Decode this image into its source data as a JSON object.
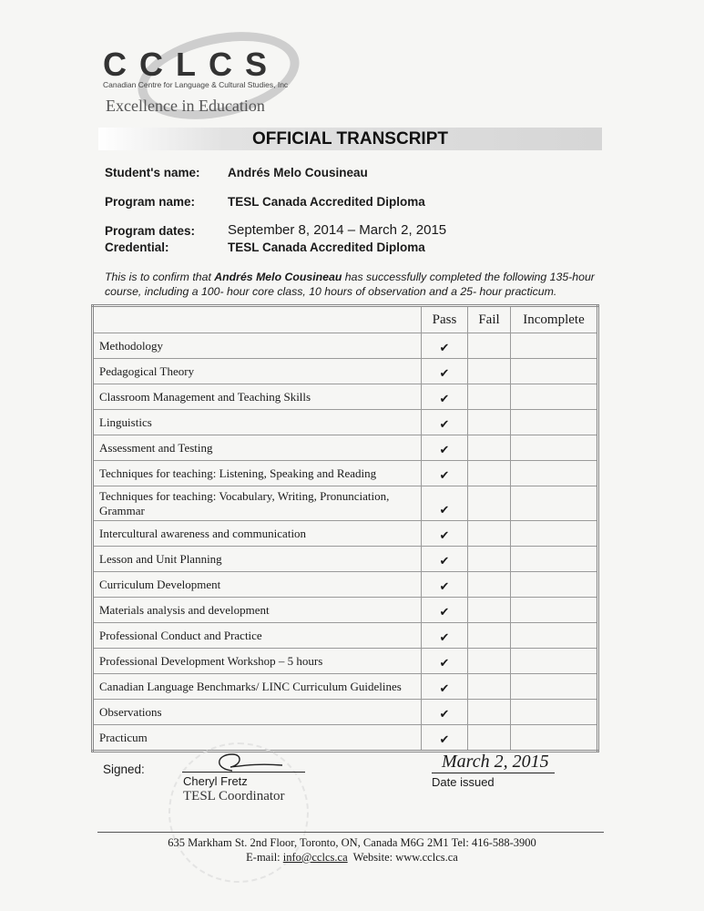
{
  "header": {
    "logo_text": "CCLCS",
    "logo_subtitle": "Canadian Centre for Language & Cultural Studies, Inc",
    "tagline": "Excellence in Education",
    "title": "OFFICIAL TRANSCRIPT"
  },
  "student": {
    "name_label": "Student's name:",
    "name": "Andrés Melo Cousineau",
    "program_label": "Program name:",
    "program": "TESL Canada Accredited Diploma",
    "dates_label": "Program dates:",
    "dates": "September 8, 2014 – March 2, 2015",
    "credential_label": "Credential:",
    "credential": "TESL Canada Accredited Diploma"
  },
  "intro": {
    "before": "This is to confirm that ",
    "name": "Andrés Melo Cousineau",
    "after": " has successfully completed the following 135-hour course, including a 100- hour core class, 10 hours of observation and a 25- hour  practicum."
  },
  "table": {
    "headers": [
      "",
      "Pass",
      "Fail",
      "Incomplete"
    ],
    "rows": [
      {
        "course": "Methodology",
        "pass": "✔",
        "fail": "",
        "incomplete": ""
      },
      {
        "course": "Pedagogical Theory",
        "pass": "✔",
        "fail": "",
        "incomplete": ""
      },
      {
        "course": "Classroom Management and Teaching Skills",
        "pass": "✔",
        "fail": "",
        "incomplete": ""
      },
      {
        "course": "Linguistics",
        "pass": "✔",
        "fail": "",
        "incomplete": ""
      },
      {
        "course": "Assessment and Testing",
        "pass": "✔",
        "fail": "",
        "incomplete": ""
      },
      {
        "course": "Techniques for teaching: Listening, Speaking and Reading",
        "pass": "✔",
        "fail": "",
        "incomplete": ""
      },
      {
        "course": "Techniques for teaching: Vocabulary, Writing, Pronunciation, Grammar",
        "pass": "✔",
        "fail": "",
        "incomplete": ""
      },
      {
        "course": "Intercultural awareness and communication",
        "pass": "✔",
        "fail": "",
        "incomplete": ""
      },
      {
        "course": "Lesson and Unit Planning",
        "pass": "✔",
        "fail": "",
        "incomplete": ""
      },
      {
        "course": "Curriculum Development",
        "pass": "✔",
        "fail": "",
        "incomplete": ""
      },
      {
        "course": "Materials analysis and development",
        "pass": "✔",
        "fail": "",
        "incomplete": ""
      },
      {
        "course": "Professional Conduct and Practice",
        "pass": "✔",
        "fail": "",
        "incomplete": ""
      },
      {
        "course": "Professional Development Workshop – 5 hours",
        "pass": "✔",
        "fail": "",
        "incomplete": ""
      },
      {
        "course": "Canadian Language Benchmarks/ LINC Curriculum Guidelines",
        "pass": "✔",
        "fail": "",
        "incomplete": ""
      },
      {
        "course": "Observations",
        "pass": "✔",
        "fail": "",
        "incomplete": ""
      },
      {
        "course": "Practicum",
        "pass": "✔",
        "fail": "",
        "incomplete": ""
      }
    ]
  },
  "signature": {
    "signed_label": "Signed:",
    "signer": "Cheryl Fretz",
    "role": "TESL Coordinator",
    "date_handwritten": "March 2, 2015",
    "date_label": "Date issued"
  },
  "footer": {
    "address": "635 Markham St. 2nd Floor, Toronto, ON, Canada M6G 2M1 Tel: 416-588-3900",
    "email_label": "E-mail:",
    "email": "info@cclcs.ca",
    "website_label": "Website:",
    "website": "www.cclcs.ca"
  }
}
